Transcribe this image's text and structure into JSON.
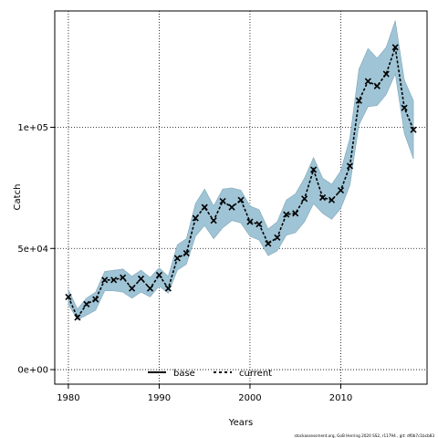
{
  "chart_data": {
    "type": "line",
    "xlabel": "Years",
    "ylabel": "Catch",
    "xlim": [
      1978.5,
      2019.5
    ],
    "ylim": [
      -6000,
      148000
    ],
    "x_ticks": [
      1980,
      1990,
      2000,
      2010
    ],
    "y_ticks": [
      0,
      50000,
      100000
    ],
    "y_tick_labels": [
      "0e+00",
      "5e+04",
      "1e+05"
    ],
    "grid": true,
    "legend_position": "bottom-center",
    "legend": [
      {
        "name": "base",
        "style": "solid"
      },
      {
        "name": "current",
        "style": "dashed"
      }
    ],
    "x": [
      1980,
      1981,
      1982,
      1983,
      1984,
      1985,
      1986,
      1987,
      1988,
      1989,
      1990,
      1991,
      1992,
      1993,
      1994,
      1995,
      1996,
      1997,
      1998,
      1999,
      2000,
      2001,
      2002,
      2003,
      2004,
      2005,
      2006,
      2007,
      2008,
      2009,
      2010,
      2011,
      2012,
      2013,
      2014,
      2015,
      2016,
      2017,
      2018
    ],
    "series": [
      {
        "name": "current",
        "color": "#000000",
        "values": [
          30000,
          21500,
          27000,
          29000,
          37000,
          37000,
          38000,
          33500,
          37500,
          33500,
          39000,
          33500,
          46000,
          48000,
          62500,
          67000,
          61500,
          69500,
          67000,
          70000,
          61000,
          60000,
          52000,
          54500,
          64000,
          64500,
          70500,
          82500,
          71000,
          70000,
          74000,
          84000,
          111000,
          119000,
          117000,
          122000,
          133000,
          108000,
          99000
        ]
      },
      {
        "name": "band_upper",
        "color": "#9fc4d6",
        "values": [
          33000,
          25000,
          29500,
          32000,
          40500,
          41000,
          41500,
          38500,
          41000,
          38000,
          42000,
          38500,
          51500,
          54000,
          68500,
          74500,
          67500,
          74500,
          75000,
          74000,
          67500,
          66000,
          58000,
          61000,
          70000,
          72500,
          79000,
          87500,
          79000,
          76500,
          82000,
          95500,
          124000,
          132500,
          128500,
          133000,
          144000,
          119500,
          111000
        ]
      },
      {
        "name": "band_lower",
        "color": "#9fc4d6",
        "values": [
          27000,
          20500,
          22500,
          24500,
          32500,
          32500,
          32000,
          29500,
          32000,
          30000,
          34500,
          31500,
          41000,
          43500,
          55000,
          59500,
          54000,
          58500,
          61500,
          60500,
          55000,
          53500,
          47000,
          49000,
          55500,
          56500,
          61000,
          68500,
          64500,
          62000,
          66500,
          76000,
          101000,
          108500,
          109000,
          113500,
          122000,
          97500,
          87000
        ]
      }
    ]
  },
  "footer_text": "stockassessment.org, GoB Herring 2020 SS2, r11794 , git: df0b7c1bcb83"
}
